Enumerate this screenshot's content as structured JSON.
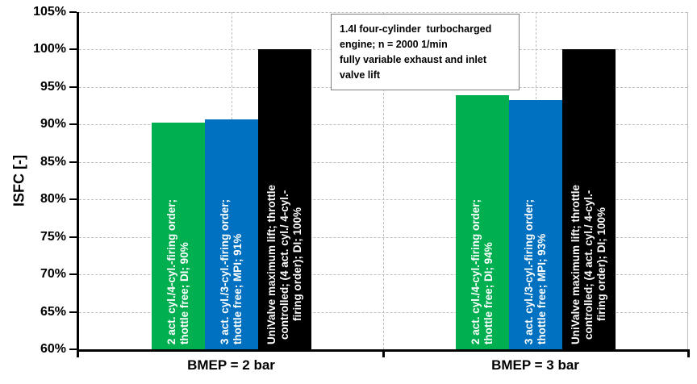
{
  "chart_data": {
    "type": "bar",
    "ylabel": "ISFC [-]",
    "ylim": [
      60,
      105
    ],
    "ytick_step": 5,
    "ytick_labels": [
      "105%",
      "100%",
      "95%",
      "90%",
      "85%",
      "80%",
      "75%",
      "70%",
      "65%",
      "60%"
    ],
    "categories": [
      "BMEP = 2 bar",
      "BMEP = 3 bar"
    ],
    "grid": {
      "horizontal": "dashed",
      "vertical": "dashed at group centers and group boundary",
      "color": "#BFBFBF"
    },
    "legend": "none (labels printed vertically inside bars)",
    "colors": {
      "series_green": "#00B050",
      "series_blue": "#0070C0",
      "series_black": "#000000",
      "axis": "#000000",
      "bar_text": "#FFFFFF"
    },
    "series": [
      {
        "name": "2 act. cyl./4-cyl.-firing order; thottle free; DI",
        "color": "#00B050",
        "label_align": "bottom",
        "points": [
          {
            "category": "BMEP = 2 bar",
            "value": 90.2,
            "data_label": "90%",
            "label_lines": [
              "2 act. cyl./4-cyl.-firing order;",
              "thottle free; DI; 90%"
            ]
          },
          {
            "category": "BMEP = 3 bar",
            "value": 93.9,
            "data_label": "94%",
            "label_lines": [
              "2 act. cyl./4-cyl.-firing order;",
              "thottle free; DI; 94%"
            ]
          }
        ]
      },
      {
        "name": "3 act. cyl./3-cyl.-firing order; thottle free; MPI",
        "color": "#0070C0",
        "label_align": "bottom",
        "points": [
          {
            "category": "BMEP = 2 bar",
            "value": 90.7,
            "data_label": "91%",
            "label_lines": [
              "3 act. cyl./3-cyl.-firing order;",
              "thottle free; MPI; 91%"
            ]
          },
          {
            "category": "BMEP = 3 bar",
            "value": 93.3,
            "data_label": "93%",
            "label_lines": [
              "3 act. cyl./3-cyl.-firing order;",
              "thottle free; MPI; 93%"
            ]
          }
        ]
      },
      {
        "name": "UniValve maximum lift; throttle controlled; (4 act. cyl./ 4-cyl.-firing order); DI",
        "color": "#000000",
        "label_align": "center",
        "points": [
          {
            "category": "BMEP = 2 bar",
            "value": 100,
            "data_label": "100%",
            "label_lines": [
              "UniValve maximum lift; throttle",
              "controlled; (4 act. cyl./ 4-cyl.-",
              "firing order); DI; 100%"
            ]
          },
          {
            "category": "BMEP = 3 bar",
            "value": 100,
            "data_label": "100%",
            "label_lines": [
              "UniValve maximum lift; throttle",
              "controlled; (4 act. cyl./ 4-cyl.-",
              "firing order); DI; 100%"
            ]
          }
        ]
      }
    ],
    "annotation": {
      "lines": [
        "1.4l four-cylinder  turbocharged",
        "engine; n = 2000 1/min",
        "fully variable exhaust and inlet",
        "valve lift"
      ]
    }
  }
}
